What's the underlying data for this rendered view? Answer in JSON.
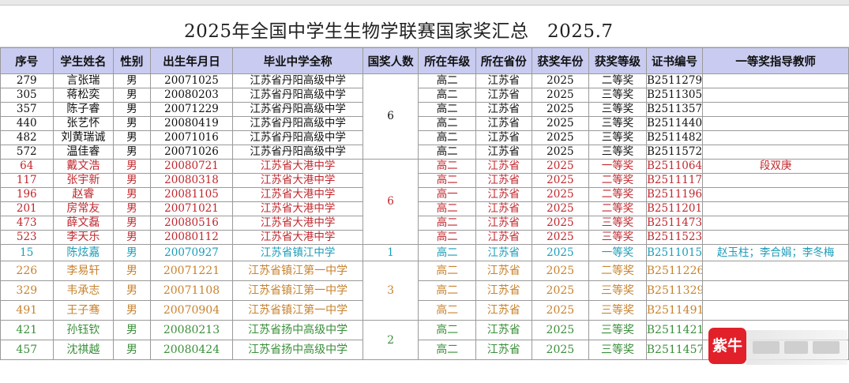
{
  "sheet": {
    "title": "2025年全国中学生生物学联赛国家奖汇总　2025.7",
    "headers": [
      "序号",
      "学生姓名",
      "性别",
      "出生年月日",
      "毕业中学全称",
      "国奖人数",
      "所在年级",
      "所在省份",
      "获奖年份",
      "获奖等级",
      "证书编号",
      "一等奖指导教师"
    ],
    "rows": [
      {
        "no": "279",
        "name": "言张瑞",
        "sex": "男",
        "dob": "20071025",
        "school": "江苏省丹阳高级中学",
        "grade": "高二",
        "prov": "江苏省",
        "year": "2025",
        "level": "二等奖",
        "cert": "B2511279",
        "teacher": ""
      },
      {
        "no": "305",
        "name": "蒋松奕",
        "sex": "男",
        "dob": "20080203",
        "school": "江苏省丹阳高级中学",
        "grade": "高二",
        "prov": "江苏省",
        "year": "2025",
        "level": "三等奖",
        "cert": "B2511305",
        "teacher": ""
      },
      {
        "no": "357",
        "name": "陈子睿",
        "sex": "男",
        "dob": "20071229",
        "school": "江苏省丹阳高级中学",
        "grade": "高二",
        "prov": "江苏省",
        "year": "2025",
        "level": "三等奖",
        "cert": "B2511357",
        "teacher": ""
      },
      {
        "no": "440",
        "name": "张艺怀",
        "sex": "男",
        "dob": "20080419",
        "school": "江苏省丹阳高级中学",
        "grade": "高二",
        "prov": "江苏省",
        "year": "2025",
        "level": "三等奖",
        "cert": "B2511440",
        "teacher": ""
      },
      {
        "no": "482",
        "name": "刘黄瑞诚",
        "sex": "男",
        "dob": "20071016",
        "school": "江苏省丹阳高级中学",
        "grade": "高二",
        "prov": "江苏省",
        "year": "2025",
        "level": "三等奖",
        "cert": "B2511482",
        "teacher": ""
      },
      {
        "no": "572",
        "name": "温佳睿",
        "sex": "男",
        "dob": "20071026",
        "school": "江苏省丹阳高级中学",
        "grade": "高二",
        "prov": "江苏省",
        "year": "2025",
        "level": "三等奖",
        "cert": "B2511572",
        "teacher": ""
      },
      {
        "no": "64",
        "name": "戴文浩",
        "sex": "男",
        "dob": "20080721",
        "school": "江苏省大港中学",
        "grade": "高二",
        "prov": "江苏省",
        "year": "2025",
        "level": "一等奖",
        "cert": "B2511064",
        "teacher": "段双庚"
      },
      {
        "no": "117",
        "name": "张宇新",
        "sex": "男",
        "dob": "20080318",
        "school": "江苏省大港中学",
        "grade": "高二",
        "prov": "江苏省",
        "year": "2025",
        "level": "二等奖",
        "cert": "B2511117",
        "teacher": ""
      },
      {
        "no": "196",
        "name": "赵睿",
        "sex": "男",
        "dob": "20081105",
        "school": "江苏省大港中学",
        "grade": "高一",
        "prov": "江苏省",
        "year": "2025",
        "level": "二等奖",
        "cert": "B2511196",
        "teacher": ""
      },
      {
        "no": "201",
        "name": "房常友",
        "sex": "男",
        "dob": "20071021",
        "school": "江苏省大港中学",
        "grade": "高二",
        "prov": "江苏省",
        "year": "2025",
        "level": "二等奖",
        "cert": "B2511201",
        "teacher": ""
      },
      {
        "no": "473",
        "name": "薛文磊",
        "sex": "男",
        "dob": "20080516",
        "school": "江苏省大港中学",
        "grade": "高二",
        "prov": "江苏省",
        "year": "2025",
        "level": "三等奖",
        "cert": "B2511473",
        "teacher": ""
      },
      {
        "no": "523",
        "name": "李天乐",
        "sex": "男",
        "dob": "20080112",
        "school": "江苏省大港中学",
        "grade": "高二",
        "prov": "江苏省",
        "year": "2025",
        "level": "三等奖",
        "cert": "B2511523",
        "teacher": ""
      },
      {
        "no": "15",
        "name": "陈炫嘉",
        "sex": "男",
        "dob": "20070927",
        "school": "江苏省镇江中学",
        "grade": "高二",
        "prov": "江苏省",
        "year": "2025",
        "level": "一等奖",
        "cert": "B2511015",
        "teacher": "赵玉柱；李合娟；李冬梅"
      },
      {
        "no": "226",
        "name": "李易轩",
        "sex": "男",
        "dob": "20071221",
        "school": "江苏省镇江第一中学",
        "grade": "高二",
        "prov": "江苏省",
        "year": "2025",
        "level": "二等奖",
        "cert": "B2511226",
        "teacher": ""
      },
      {
        "no": "329",
        "name": "韦承志",
        "sex": "男",
        "dob": "20071108",
        "school": "江苏省镇江第一中学",
        "grade": "高二",
        "prov": "江苏省",
        "year": "2025",
        "level": "三等奖",
        "cert": "B2511329",
        "teacher": ""
      },
      {
        "no": "491",
        "name": "王子骞",
        "sex": "男",
        "dob": "20070904",
        "school": "江苏省镇江第一中学",
        "grade": "高二",
        "prov": "江苏省",
        "year": "2025",
        "level": "三等奖",
        "cert": "B2511491",
        "teacher": ""
      },
      {
        "no": "421",
        "name": "孙钰钦",
        "sex": "男",
        "dob": "20080213",
        "school": "江苏省扬中高级中学",
        "grade": "高二",
        "prov": "江苏省",
        "year": "2025",
        "level": "三等奖",
        "cert": "B2511421",
        "teacher": ""
      },
      {
        "no": "457",
        "name": "沈祺越",
        "sex": "男",
        "dob": "20080424",
        "school": "江苏省扬中高级中学",
        "grade": "高二",
        "prov": "江苏省",
        "year": "2025",
        "level": "三等奖",
        "cert": "B2511457",
        "teacher": ""
      }
    ],
    "group_counts": [
      "6",
      "6",
      "1",
      "3",
      "2"
    ],
    "colors": {
      "black": "#111111",
      "red": "#c1272d",
      "teal": "#1b9cb8",
      "orange": "#c8832f",
      "green": "#3a8f3a",
      "header_bg": "#c9ccf0"
    }
  },
  "watermark": {
    "logo_text": "紫牛"
  }
}
